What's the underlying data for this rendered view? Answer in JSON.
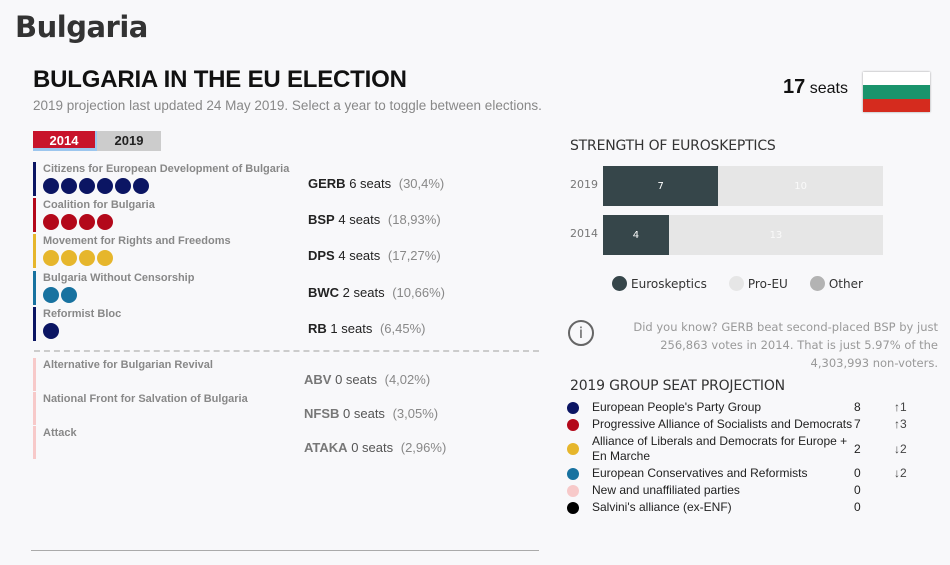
{
  "page_title": "Bulgaria",
  "main_title": "BULGARIA IN THE EU ELECTION",
  "subtitle": "2019 projection last updated 24 May 2019. Select a year to toggle between elections.",
  "seats_total": {
    "number": "17",
    "label": "seats"
  },
  "flag_colors": [
    "#ffffff",
    "#1a946c",
    "#d52b1e"
  ],
  "tabs": [
    {
      "label": "2014",
      "active": true
    },
    {
      "label": "2019",
      "active": false
    }
  ],
  "parties": [
    {
      "name": "Citizens for European Development of Bulgaria",
      "abbr": "GERB",
      "seats": 6,
      "seats_text": "6 seats",
      "pct": "(30,4%)",
      "color": "#0b1563"
    },
    {
      "name": "Coalition for Bulgaria",
      "abbr": "BSP",
      "seats": 4,
      "seats_text": "4 seats",
      "pct": "(18,93%)",
      "color": "#b3081a"
    },
    {
      "name": "Movement for Rights and Freedoms",
      "abbr": "DPS",
      "seats": 4,
      "seats_text": "4 seats",
      "pct": "(17,27%)",
      "color": "#e6b62c"
    },
    {
      "name": "Bulgaria Without Censorship",
      "abbr": "BWC",
      "seats": 2,
      "seats_text": "2 seats",
      "pct": "(10,66%)",
      "color": "#1872a0"
    },
    {
      "name": "Reformist Bloc",
      "abbr": "RB",
      "seats": 1,
      "seats_text": "1 seats",
      "pct": "(6,45%)",
      "color": "#0b1563"
    }
  ],
  "minor_parties": [
    {
      "name": "Alternative for Bulgarian Revival",
      "abbr": "ABV",
      "seats_text": "0 seats",
      "pct": "(4,02%)",
      "color": "#f7c9c9"
    },
    {
      "name": "National Front for Salvation of Bulgaria",
      "abbr": "NFSB",
      "seats_text": "0 seats",
      "pct": "(3,05%)",
      "color": "#f7c9c9"
    },
    {
      "name": "Attack",
      "abbr": "ATAKA",
      "seats_text": "0 seats",
      "pct": "(2,96%)",
      "color": "#f7c9c9"
    }
  ],
  "euroskeptics": {
    "title": "STRENGTH OF EUROSKEPTICS",
    "total": 17,
    "rows": [
      {
        "year": "2019",
        "euroskeptics": 7,
        "pro_eu": 10
      },
      {
        "year": "2014",
        "euroskeptics": 4,
        "pro_eu": 13
      }
    ],
    "legend": [
      {
        "label": "Euroskeptics",
        "color": "#36464a"
      },
      {
        "label": "Pro-EU",
        "color": "#e6e6e6"
      },
      {
        "label": "Other",
        "color": "#b3b3b3"
      }
    ]
  },
  "info": {
    "icon": "i",
    "text": "Did you know? GERB beat second-placed BSP by just 256,863 votes in 2014. That is just 5.97% of the 4,303,993 non-voters."
  },
  "projection": {
    "title": "2019 GROUP SEAT PROJECTION",
    "rows": [
      {
        "name": "European People's Party Group",
        "seats": "8",
        "change": "↑1",
        "color": "#0b1563"
      },
      {
        "name": "Progressive Alliance of Socialists and Democrats",
        "seats": "7",
        "change": "↑3",
        "color": "#b3081a"
      },
      {
        "name": "Alliance of Liberals and Democrats for Europe + En Marche",
        "seats": "2",
        "change": "↓2",
        "color": "#e6b62c"
      },
      {
        "name": "European Conservatives and Reformists",
        "seats": "0",
        "change": "↓2",
        "color": "#1872a0"
      },
      {
        "name": "New and unaffiliated parties",
        "seats": "0",
        "change": "",
        "color": "#f7c9c9"
      },
      {
        "name": "Salvini's alliance (ex-ENF)",
        "seats": "0",
        "change": "",
        "color": "#000000"
      }
    ]
  }
}
